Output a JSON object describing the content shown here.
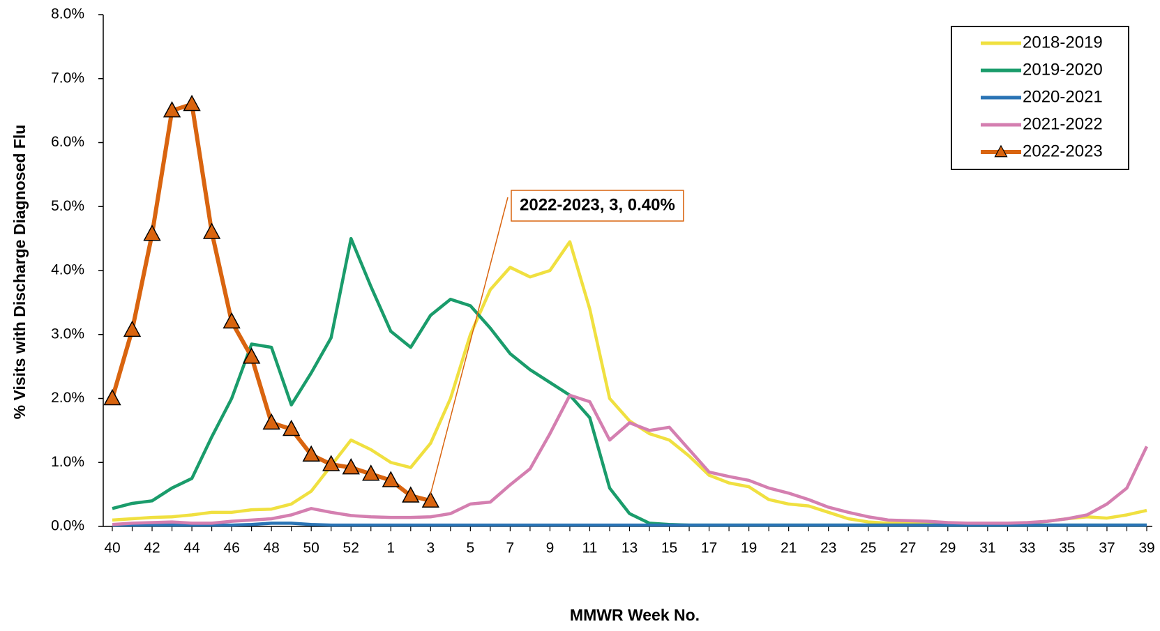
{
  "chart_data": {
    "type": "line",
    "ylabel": "% Visits with Discharge Diagnosed Flu",
    "xlabel": "MMWR Week No.",
    "categories": [
      40,
      null,
      42,
      null,
      44,
      null,
      46,
      null,
      48,
      null,
      50,
      null,
      52,
      null,
      1,
      null,
      3,
      null,
      5,
      null,
      7,
      null,
      9,
      null,
      11,
      null,
      13,
      null,
      15,
      null,
      17,
      null,
      19,
      null,
      21,
      null,
      23,
      null,
      25,
      null,
      27,
      null,
      29,
      null,
      31,
      null,
      33,
      null,
      35,
      null,
      37,
      null,
      39
    ],
    "ylim": [
      0,
      8
    ],
    "yticks": [
      {
        "value": 0,
        "label": "0.0%"
      },
      {
        "value": 1,
        "label": "1.0%"
      },
      {
        "value": 2,
        "label": "2.0%"
      },
      {
        "value": 3,
        "label": "3.0%"
      },
      {
        "value": 4,
        "label": "4.0%"
      },
      {
        "value": 5,
        "label": "5.0%"
      },
      {
        "value": 6,
        "label": "6.0%"
      },
      {
        "value": 7,
        "label": "7.0%"
      },
      {
        "value": 8,
        "label": "8.0%"
      }
    ],
    "legend": "top-right",
    "series": [
      {
        "name": "2018-2019",
        "color": "#f0e040",
        "values": [
          0.1,
          0.12,
          0.14,
          0.15,
          0.18,
          0.22,
          0.22,
          0.26,
          0.27,
          0.35,
          0.55,
          0.95,
          1.35,
          1.2,
          1.0,
          0.92,
          1.3,
          2.0,
          3.0,
          3.7,
          4.05,
          3.9,
          4.0,
          4.45,
          3.4,
          2.0,
          1.65,
          1.45,
          1.35,
          1.1,
          0.8,
          0.68,
          0.62,
          0.42,
          0.35,
          0.32,
          0.22,
          0.12,
          0.07,
          0.05,
          0.05,
          0.04,
          0.04,
          0.03,
          0.03,
          0.04,
          0.05,
          0.08,
          0.12,
          0.15,
          0.13,
          0.18,
          0.25
        ]
      },
      {
        "name": "2019-2020",
        "color": "#1a9c6b",
        "values": [
          0.28,
          0.36,
          0.4,
          0.6,
          0.75,
          1.4,
          2.0,
          2.85,
          2.8,
          1.9,
          2.4,
          2.95,
          4.5,
          3.75,
          3.05,
          2.8,
          3.3,
          3.55,
          3.45,
          3.1,
          2.7,
          2.45,
          2.25,
          2.05,
          1.7,
          0.6,
          0.2,
          0.05,
          0.03,
          0.02,
          0.02,
          0.02,
          0.02,
          0.02,
          0.02,
          0.02,
          0.02,
          0.02,
          0.02,
          0.02,
          0.02,
          0.02,
          0.02,
          0.02,
          0.02,
          0.02,
          0.02,
          0.02,
          0.02,
          0.02,
          0.02,
          0.02,
          0.02
        ]
      },
      {
        "name": "2020-2021",
        "color": "#2a74b5",
        "values": [
          0.02,
          0.02,
          0.02,
          0.02,
          0.02,
          0.02,
          0.02,
          0.03,
          0.05,
          0.05,
          0.03,
          0.02,
          0.02,
          0.02,
          0.02,
          0.02,
          0.02,
          0.02,
          0.02,
          0.02,
          0.02,
          0.02,
          0.02,
          0.02,
          0.02,
          0.02,
          0.02,
          0.02,
          0.02,
          0.02,
          0.02,
          0.02,
          0.02,
          0.02,
          0.02,
          0.02,
          0.02,
          0.02,
          0.02,
          0.02,
          0.02,
          0.02,
          0.02,
          0.02,
          0.02,
          0.02,
          0.02,
          0.02,
          0.02,
          0.02,
          0.02,
          0.02,
          0.02
        ]
      },
      {
        "name": "2021-2022",
        "color": "#d47fb0",
        "values": [
          0.03,
          0.05,
          0.06,
          0.07,
          0.05,
          0.05,
          0.08,
          0.1,
          0.12,
          0.18,
          0.28,
          0.22,
          0.17,
          0.15,
          0.14,
          0.14,
          0.15,
          0.2,
          0.35,
          0.38,
          0.65,
          0.9,
          1.45,
          2.05,
          1.95,
          1.35,
          1.62,
          1.5,
          1.55,
          1.2,
          0.85,
          0.78,
          0.72,
          0.6,
          0.52,
          0.42,
          0.3,
          0.22,
          0.15,
          0.1,
          0.09,
          0.08,
          0.06,
          0.05,
          0.05,
          0.05,
          0.06,
          0.08,
          0.12,
          0.18,
          0.35,
          0.6,
          1.25
        ]
      },
      {
        "name": "2022-2023",
        "color": "#d9640f",
        "marker": "triangle",
        "values": [
          2.0,
          3.07,
          4.57,
          6.5,
          6.6,
          4.6,
          3.2,
          2.65,
          1.62,
          1.52,
          1.12,
          0.97,
          0.92,
          0.82,
          0.72,
          0.48,
          0.4,
          null,
          null,
          null,
          null,
          null,
          null,
          null,
          null,
          null,
          null,
          null,
          null,
          null,
          null,
          null,
          null,
          null,
          null,
          null,
          null,
          null,
          null,
          null,
          null,
          null,
          null,
          null,
          null,
          null,
          null,
          null,
          null,
          null,
          null,
          null,
          null
        ]
      }
    ],
    "annotations": [
      {
        "text": "2022-2023, 3, 0.40%",
        "color": "#d9640f"
      }
    ]
  }
}
